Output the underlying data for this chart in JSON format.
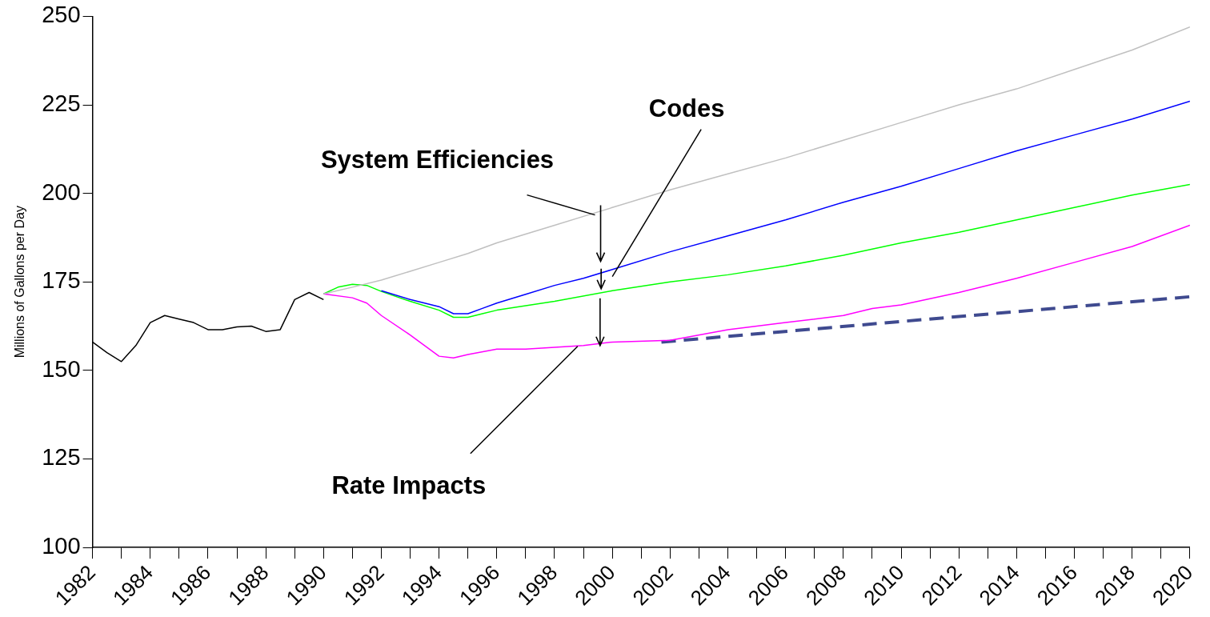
{
  "chart_data": {
    "type": "line",
    "ylabel": "Millions of Gallons per Day",
    "ylim": [
      100,
      250
    ],
    "yticks": [
      100,
      125,
      150,
      175,
      200,
      225,
      250
    ],
    "xlim": [
      1982,
      2020
    ],
    "xticks": [
      1982,
      {
        "value": 1983,
        "label": null
      },
      1984,
      {
        "value": 1985,
        "label": null
      },
      1986,
      {
        "value": 1987,
        "label": null
      },
      1988,
      {
        "value": 1989,
        "label": null
      },
      1990,
      {
        "value": 1991,
        "label": null
      },
      1992,
      {
        "value": 1993,
        "label": null
      },
      1994,
      {
        "value": 1995,
        "label": null
      },
      1996,
      {
        "value": 1997,
        "label": null
      },
      1998,
      {
        "value": 1999,
        "label": null
      },
      2000,
      {
        "value": 2001,
        "label": null
      },
      2002,
      {
        "value": 2003,
        "label": null
      },
      2004,
      {
        "value": 2005,
        "label": null
      },
      2006,
      {
        "value": 2007,
        "label": null
      },
      2008,
      {
        "value": 2009,
        "label": null
      },
      2010,
      {
        "value": 2011,
        "label": null
      },
      2012,
      {
        "value": 2013,
        "label": null
      },
      2014,
      {
        "value": 2015,
        "label": null
      },
      2016,
      {
        "value": 2017,
        "label": null
      },
      2018,
      {
        "value": 2019,
        "label": null
      },
      2020
    ],
    "grid": false,
    "legend": false,
    "marker": "none",
    "line_style": "solid",
    "series": [
      {
        "color": "#000000",
        "x": [
          1982,
          1982.5,
          1983,
          1983.5,
          1984,
          1984.5,
          1985,
          1985.5,
          1986,
          1986.5,
          1987,
          1987.5,
          1988,
          1988.5,
          1989,
          1989.5,
          1990
        ],
        "values": [
          158,
          155,
          152.5,
          157,
          163.5,
          165.5,
          164.5,
          163.5,
          161.5,
          161.5,
          162.3,
          162.5,
          161,
          161.5,
          170,
          172,
          170
        ]
      },
      {
        "color": "#c0c0c0",
        "x": [
          1990,
          1991,
          1992,
          1993,
          1994,
          1995,
          1996,
          1997,
          1998,
          1999,
          2000,
          2002,
          2004,
          2006,
          2008,
          2010,
          2012,
          2014,
          2016,
          2018,
          2020
        ],
        "values": [
          171.6,
          173.5,
          175.5,
          178,
          180.5,
          183,
          186,
          188.5,
          191,
          193.5,
          196,
          201,
          205.5,
          210,
          215,
          220,
          225,
          229.5,
          235,
          240.5,
          247
        ]
      },
      {
        "color": "#0000ff",
        "x": [
          1992,
          1993,
          1994,
          1994.5,
          1995,
          1995.5,
          1996,
          1997,
          1998,
          1999,
          2000,
          2002,
          2004,
          2006,
          2008,
          2010,
          2012,
          2014,
          2016,
          2018,
          2020
        ],
        "values": [
          172.5,
          170,
          168,
          166,
          166,
          167.5,
          169,
          171.5,
          174,
          176,
          178.5,
          183.5,
          188,
          192.5,
          197.5,
          202,
          207,
          212,
          216.5,
          221,
          226
        ]
      },
      {
        "color": "#ff00ff",
        "x": [
          1990,
          1991,
          1991.5,
          1992,
          1993,
          1993.5,
          1994,
          1994.5,
          1995,
          1996,
          1997,
          1998,
          1999,
          2000,
          2002,
          2004,
          2006,
          2008,
          2009,
          2010,
          2012,
          2014,
          2016,
          2018,
          2020
        ],
        "values": [
          171.6,
          170.5,
          169,
          165.5,
          160,
          157,
          154,
          153.5,
          154.5,
          156,
          156,
          156.5,
          157,
          158,
          158.5,
          161.5,
          163.5,
          165.5,
          167.5,
          168.5,
          172,
          176,
          180.5,
          185,
          191
        ]
      },
      {
        "color": "#00ff00",
        "x": [
          1990,
          1990.5,
          1991,
          1991.5,
          1992,
          1993,
          1994,
          1994.5,
          1995,
          1995.5,
          1996,
          1998,
          2000,
          2002,
          2004,
          2006,
          2008,
          2010,
          2012,
          2014,
          2016,
          2018,
          2020
        ],
        "values": [
          171.6,
          173.5,
          174.3,
          174,
          172.3,
          169.5,
          167,
          165,
          165,
          166,
          167,
          169.5,
          172.5,
          175,
          177,
          179.5,
          182.5,
          186,
          189,
          192.5,
          196,
          199.5,
          202.5
        ]
      },
      {
        "color": "#3f4a8f",
        "line_style": "dashed",
        "x": [
          2001.7,
          2020
        ],
        "values": [
          158,
          170.8
        ]
      }
    ],
    "annotations": [
      {
        "text": "System Efficiencies",
        "x": 1999.4,
        "y": 193.9
      },
      {
        "text": "Codes",
        "x": 2000,
        "y": 178.5
      },
      {
        "text": "Rate Impacts",
        "x": 1998.8,
        "y": 156.8
      }
    ]
  }
}
